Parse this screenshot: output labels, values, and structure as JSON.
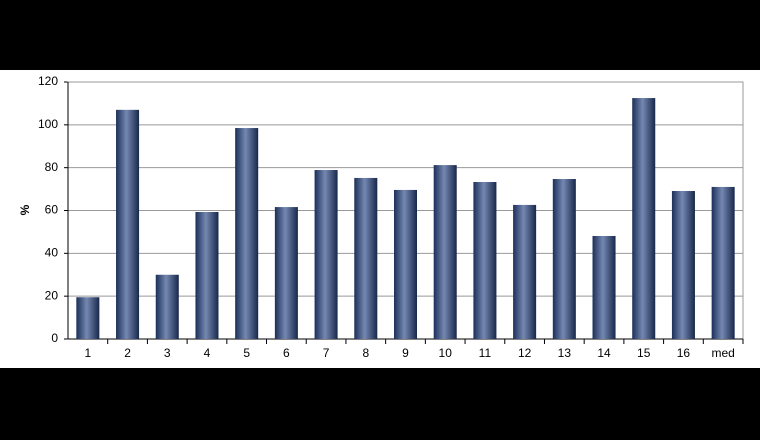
{
  "chart_data": {
    "type": "bar",
    "y_label": "%",
    "categories": [
      "1",
      "2",
      "3",
      "4",
      "5",
      "6",
      "7",
      "8",
      "9",
      "10",
      "11",
      "12",
      "13",
      "14",
      "15",
      "16",
      "med"
    ],
    "values": [
      19.5,
      107,
      30,
      59.3,
      98.5,
      61.6,
      78.9,
      75.2,
      69.6,
      81.2,
      73.3,
      62.6,
      74.7,
      48.1,
      112.5,
      69.1,
      71
    ],
    "color": "#2b4888",
    "ylim": [
      0,
      120
    ],
    "yticks": [
      0,
      20,
      40,
      60,
      80,
      100,
      120
    ],
    "grid": true
  }
}
